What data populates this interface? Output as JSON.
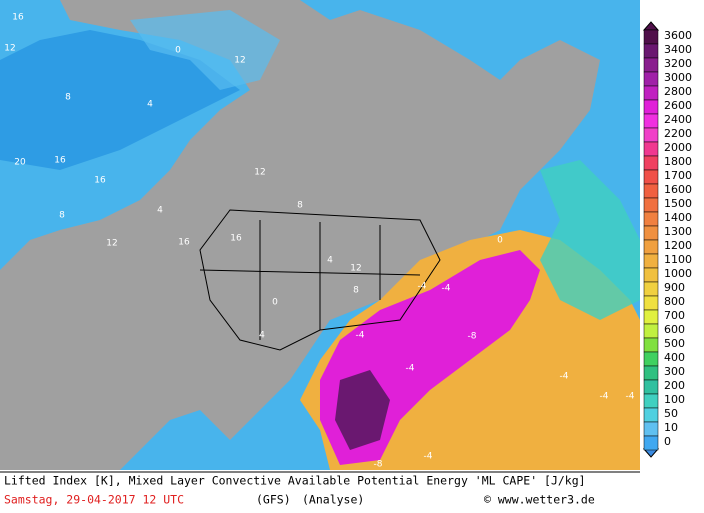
{
  "map": {
    "legend": {
      "levels": [
        3600,
        3400,
        3200,
        3000,
        2800,
        2600,
        2400,
        2200,
        2000,
        1800,
        1700,
        1600,
        1500,
        1400,
        1300,
        1200,
        1100,
        1000,
        900,
        800,
        700,
        600,
        500,
        400,
        300,
        200,
        100,
        50,
        10,
        0
      ],
      "colors": [
        "#50104a",
        "#6a1870",
        "#8a1e8e",
        "#a020a8",
        "#c020c0",
        "#e020d8",
        "#f030e0",
        "#f040c8",
        "#f03890",
        "#f04060",
        "#f05048",
        "#f06040",
        "#f07040",
        "#f08040",
        "#f09040",
        "#f0a040",
        "#f0b040",
        "#f0c040",
        "#f0d040",
        "#f0e040",
        "#e0f040",
        "#c0f040",
        "#80e040",
        "#40d060",
        "#30c080",
        "#30c0a0",
        "#40d0c0",
        "#50d0e0",
        "#60c0f0",
        "#40a8f0"
      ]
    },
    "contour_labels": [
      "16",
      "12",
      "8",
      "4",
      "0",
      "12",
      "16",
      "20",
      "16",
      "8",
      "12",
      "4",
      "16",
      "12",
      "8",
      "4",
      "0",
      "16",
      "12",
      "8",
      "4",
      "0",
      "-4",
      "-4",
      "-8",
      "-4",
      "-4",
      "-8",
      "-4",
      "-4",
      "-4",
      "-4"
    ],
    "footer": {
      "title": "Lifted Index [K], Mixed Layer Convective Available Potential Energy 'ML CAPE' [J/kg]",
      "date": "Samstag, 29-04-2017  12 UTC",
      "model": "(GFS)",
      "run": "(Analyse)",
      "credit": "© www.wetter3.de"
    }
  }
}
